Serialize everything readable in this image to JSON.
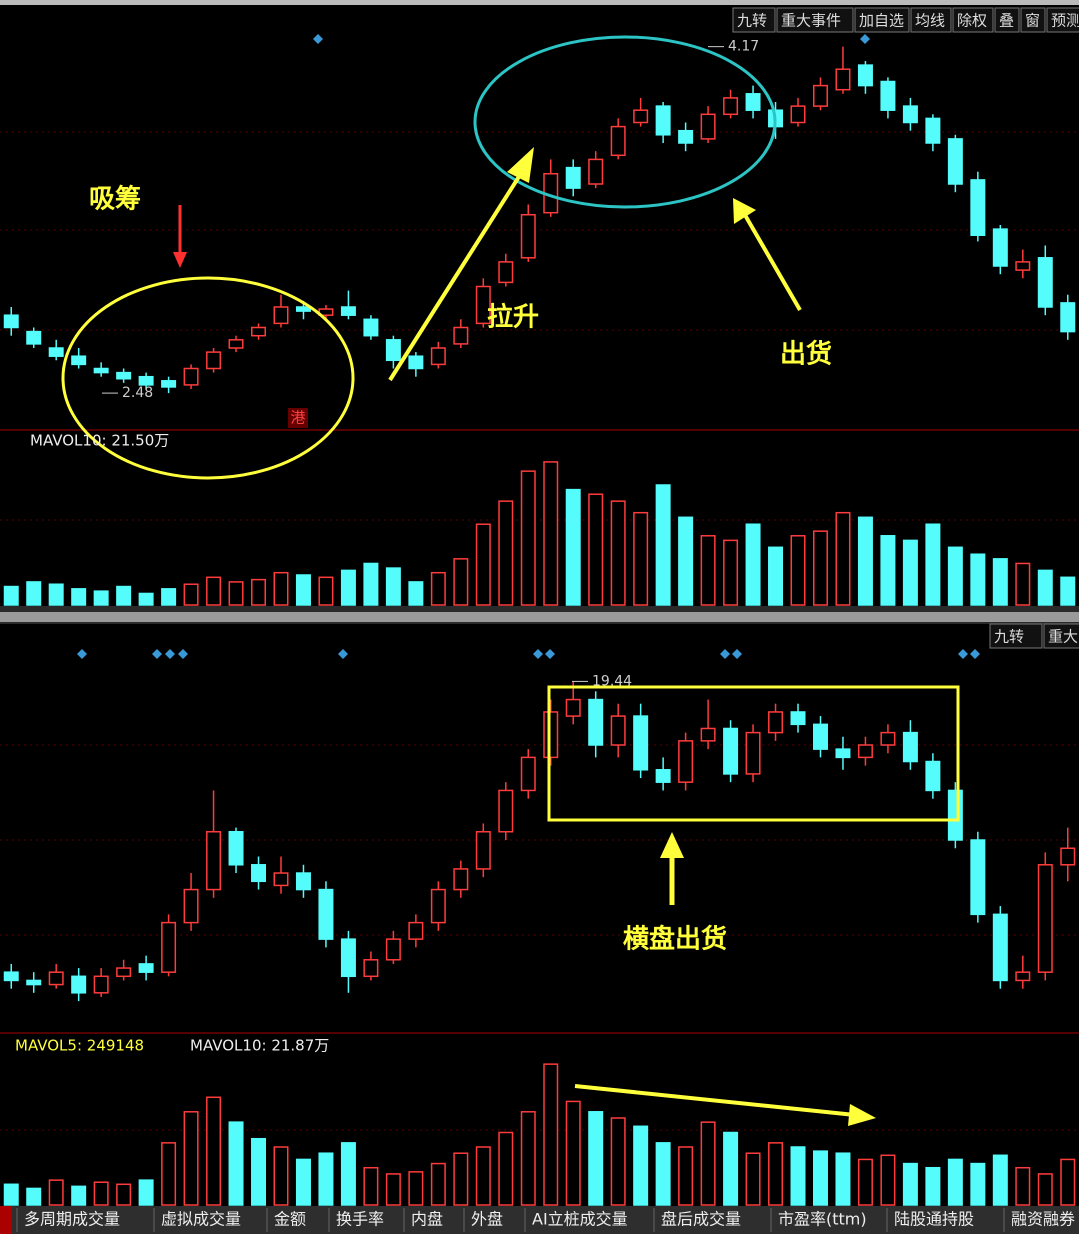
{
  "toolbar_top": [
    "九转",
    "重大事件",
    "加自选",
    "均线",
    "除权",
    "叠",
    "窗",
    "预测"
  ],
  "toolbar_bottom": [
    "九转",
    "重大"
  ],
  "annotations": {
    "absorb": "吸筹",
    "pull_up": "拉升",
    "ship": "出货",
    "sideways_ship": "横盘出货",
    "hk": "港"
  },
  "tabs": [
    "多周期成交量",
    "虚拟成交量",
    "金额",
    "换手率",
    "内盘",
    "外盘",
    "AI立桩成交量",
    "盘后成交量",
    "市盈率(ttm)",
    "陆股通持股",
    "融资融券"
  ],
  "chart_data": [
    {
      "type": "candlestick",
      "up_color": "#ff3c3c",
      "down_color": "#54fcfc",
      "ylim": [
        2.3,
        4.3
      ],
      "vol_ylim": [
        0,
        65
      ],
      "low_mark": 2.48,
      "high_mark": 4.17,
      "vol_labels": [
        "MAVOL10: 21.50万"
      ],
      "open": [
        2.86,
        2.78,
        2.7,
        2.66,
        2.6,
        2.58,
        2.56,
        2.54,
        2.52,
        2.6,
        2.7,
        2.76,
        2.82,
        2.9,
        2.86,
        2.9,
        2.84,
        2.74,
        2.66,
        2.62,
        2.72,
        2.82,
        3.02,
        3.14,
        3.36,
        3.58,
        3.5,
        3.64,
        3.8,
        3.88,
        3.76,
        3.72,
        3.84,
        3.94,
        3.86,
        3.8,
        3.88,
        3.96,
        4.08,
        4.0,
        3.88,
        3.82,
        3.72,
        3.52,
        3.28,
        3.08,
        3.14,
        2.92
      ],
      "high": [
        2.9,
        2.8,
        2.74,
        2.7,
        2.63,
        2.6,
        2.58,
        2.56,
        2.62,
        2.7,
        2.76,
        2.82,
        2.96,
        2.93,
        2.91,
        2.98,
        2.86,
        2.76,
        2.68,
        2.73,
        2.84,
        3.04,
        3.16,
        3.4,
        3.62,
        3.62,
        3.66,
        3.82,
        3.92,
        3.9,
        3.8,
        3.88,
        3.96,
        3.98,
        3.9,
        3.92,
        4.02,
        4.17,
        4.1,
        4.02,
        3.92,
        3.84,
        3.74,
        3.56,
        3.3,
        3.18,
        3.2,
        2.96
      ],
      "low": [
        2.76,
        2.7,
        2.64,
        2.6,
        2.56,
        2.53,
        2.5,
        2.48,
        2.5,
        2.58,
        2.68,
        2.74,
        2.8,
        2.84,
        2.84,
        2.84,
        2.74,
        2.6,
        2.56,
        2.6,
        2.7,
        2.8,
        3.0,
        3.12,
        3.34,
        3.44,
        3.48,
        3.62,
        3.78,
        3.7,
        3.66,
        3.7,
        3.82,
        3.82,
        3.72,
        3.78,
        3.86,
        3.94,
        3.94,
        3.82,
        3.76,
        3.66,
        3.46,
        3.22,
        3.06,
        3.04,
        2.86,
        2.74
      ],
      "close": [
        2.8,
        2.72,
        2.66,
        2.62,
        2.58,
        2.55,
        2.52,
        2.51,
        2.6,
        2.68,
        2.74,
        2.8,
        2.9,
        2.88,
        2.89,
        2.86,
        2.76,
        2.64,
        2.6,
        2.7,
        2.8,
        3.0,
        3.12,
        3.35,
        3.55,
        3.48,
        3.62,
        3.78,
        3.86,
        3.74,
        3.7,
        3.84,
        3.92,
        3.86,
        3.78,
        3.88,
        3.98,
        4.06,
        3.98,
        3.86,
        3.8,
        3.7,
        3.5,
        3.25,
        3.1,
        3.12,
        2.9,
        2.78
      ],
      "volume": [
        8,
        10,
        9,
        7,
        6,
        8,
        5,
        7,
        9,
        12,
        10,
        11,
        14,
        13,
        12,
        15,
        18,
        16,
        10,
        14,
        20,
        35,
        45,
        58,
        62,
        50,
        48,
        45,
        40,
        52,
        38,
        30,
        28,
        35,
        25,
        30,
        32,
        40,
        38,
        30,
        28,
        35,
        25,
        22,
        20,
        18,
        15,
        12
      ]
    },
    {
      "type": "candlestick",
      "up_color": "#ff3c3c",
      "down_color": "#54fcfc",
      "ylim": [
        11,
        20.2
      ],
      "vol_ylim": [
        0,
        70
      ],
      "high_mark": 19.44,
      "vol_labels": [
        "MAVOL5: 249148",
        "MAVOL10: 21.87万"
      ],
      "open": [
        12.4,
        12.2,
        12.1,
        12.3,
        11.9,
        12.3,
        12.6,
        12.4,
        13.6,
        14.4,
        15.8,
        15.0,
        14.5,
        14.8,
        14.4,
        13.2,
        12.3,
        12.7,
        13.2,
        13.6,
        14.4,
        14.9,
        15.8,
        16.8,
        17.6,
        18.6,
        19.0,
        17.9,
        18.6,
        17.3,
        17.0,
        18.0,
        18.3,
        17.2,
        18.2,
        18.7,
        18.4,
        17.8,
        17.6,
        17.9,
        18.2,
        17.5,
        16.8,
        15.6,
        13.8,
        12.2,
        12.4,
        15.0
      ],
      "high": [
        12.6,
        12.4,
        12.6,
        12.5,
        12.5,
        12.7,
        12.8,
        13.8,
        14.8,
        16.8,
        15.9,
        15.2,
        15.2,
        15.0,
        14.6,
        13.4,
        12.9,
        13.4,
        13.8,
        14.6,
        15.1,
        16.0,
        17.0,
        17.8,
        19.0,
        19.44,
        19.2,
        18.9,
        18.9,
        17.6,
        18.2,
        19.0,
        18.5,
        18.4,
        18.9,
        18.9,
        18.6,
        18.1,
        18.1,
        18.4,
        18.5,
        17.7,
        17.0,
        15.8,
        14.0,
        12.8,
        15.3,
        15.9
      ],
      "low": [
        12.0,
        11.9,
        12.0,
        11.7,
        11.8,
        12.2,
        12.2,
        12.3,
        13.4,
        14.2,
        14.8,
        14.4,
        14.3,
        14.2,
        13.0,
        11.9,
        12.2,
        12.6,
        13.0,
        13.4,
        14.2,
        14.7,
        15.6,
        16.6,
        17.4,
        18.4,
        17.6,
        17.6,
        17.1,
        16.8,
        16.8,
        17.8,
        17.0,
        17.0,
        18.0,
        18.2,
        17.6,
        17.3,
        17.4,
        17.7,
        17.3,
        16.6,
        15.4,
        13.6,
        12.0,
        12.0,
        12.2,
        14.6
      ],
      "close": [
        12.2,
        12.1,
        12.4,
        11.9,
        12.3,
        12.5,
        12.4,
        13.6,
        14.4,
        15.8,
        15.0,
        14.6,
        14.8,
        14.4,
        13.2,
        12.3,
        12.7,
        13.2,
        13.6,
        14.4,
        14.9,
        15.8,
        16.8,
        17.6,
        18.7,
        19.0,
        17.9,
        18.6,
        17.3,
        17.0,
        18.0,
        18.3,
        17.2,
        18.2,
        18.7,
        18.4,
        17.8,
        17.6,
        17.9,
        18.2,
        17.5,
        16.8,
        15.6,
        13.8,
        12.2,
        12.4,
        15.0,
        15.4
      ],
      "volume": [
        10,
        8,
        12,
        9,
        11,
        10,
        12,
        30,
        45,
        52,
        40,
        32,
        28,
        22,
        25,
        30,
        18,
        15,
        16,
        20,
        25,
        28,
        35,
        45,
        68,
        50,
        45,
        42,
        38,
        30,
        28,
        40,
        35,
        25,
        30,
        28,
        26,
        25,
        22,
        24,
        20,
        18,
        22,
        20,
        24,
        18,
        15,
        22
      ]
    }
  ]
}
